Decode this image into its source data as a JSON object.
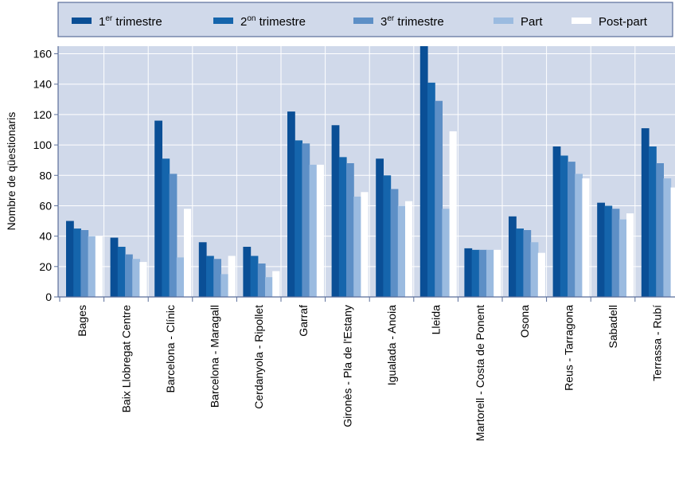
{
  "chart_data": {
    "type": "bar",
    "ylabel": "Nombre de qüestionaris",
    "xlabel": "",
    "ylim": [
      0,
      165
    ],
    "yticks": [
      0,
      20,
      40,
      60,
      80,
      100,
      120,
      140,
      160
    ],
    "grid": true,
    "legend_position": "top",
    "categories": [
      "Bages",
      "Baix Llobregat Centre",
      "Barcelona - Clínic",
      "Barcelona - Maragall",
      "Cerdanyola - Ripollet",
      "Garraf",
      "Gironès - Pla de l'Estany",
      "Igualada - Anoia",
      "Lleida",
      "Martorell - Costa de Ponent",
      "Osona",
      "Reus - Tarragona",
      "Sabadell",
      "Terrassa - Rubí"
    ],
    "series": [
      {
        "name": "1er trimestre",
        "label_main": "1",
        "label_sup": "er",
        "label_rest": " trimestre",
        "color": "#0a4f96",
        "values": [
          50,
          39,
          116,
          36,
          33,
          122,
          113,
          91,
          166,
          32,
          53,
          99,
          62,
          111
        ]
      },
      {
        "name": "2on trimestre",
        "label_main": "2",
        "label_sup": "on",
        "label_rest": " trimestre",
        "color": "#1565ac",
        "values": [
          45,
          33,
          91,
          27,
          27,
          103,
          92,
          80,
          141,
          31,
          45,
          93,
          60,
          99
        ]
      },
      {
        "name": "3er trimestre",
        "label_main": "3",
        "label_sup": "er",
        "label_rest": " trimestre",
        "color": "#5d8fc6",
        "values": [
          44,
          28,
          81,
          25,
          22,
          101,
          88,
          71,
          129,
          31,
          44,
          89,
          58,
          88
        ]
      },
      {
        "name": "Part",
        "label_main": "Part",
        "label_sup": "",
        "label_rest": "",
        "color": "#9bbbe0",
        "values": [
          40,
          25,
          26,
          15,
          13,
          87,
          66,
          60,
          58,
          31,
          36,
          81,
          51,
          78
        ]
      },
      {
        "name": "Post-part",
        "label_main": "Post-part",
        "label_sup": "",
        "label_rest": "",
        "color": "#ffffff",
        "values": [
          40,
          23,
          58,
          27,
          17,
          87,
          69,
          63,
          109,
          31,
          29,
          78,
          55,
          72
        ]
      }
    ],
    "colors": {
      "plot_bg": "#d0d9ea",
      "legend_bg": "#d0d9ea",
      "grid": "#ffffff",
      "border": "#5a6e9a"
    }
  }
}
